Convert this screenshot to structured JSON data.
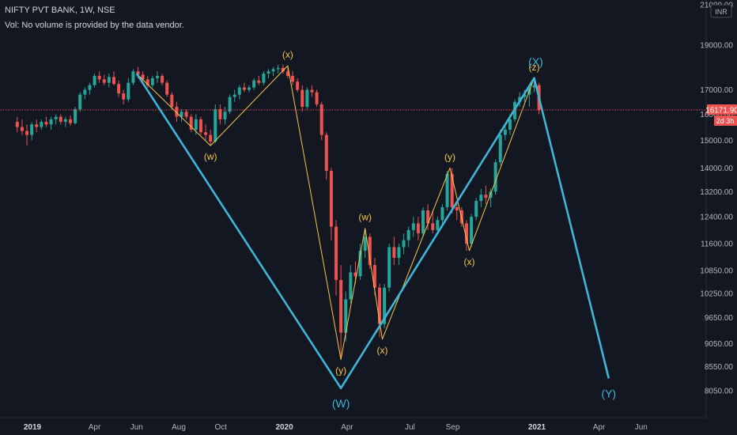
{
  "header": {
    "title": "NIFTY PVT BANK, 1W, NSE",
    "volume_note": "Vol: No volume is provided by the data vendor."
  },
  "price_axis": {
    "currency": "INR",
    "ticks": [
      "21000.00",
      "19000.00",
      "17000.00",
      "16000.00",
      "15000.00",
      "14000.00",
      "13200.00",
      "12400.00",
      "11600.00",
      "10850.00",
      "10250.00",
      "9650.00",
      "9050.00",
      "8550.00",
      "8050.00"
    ],
    "last_price": "16171.90",
    "countdown": "2d 3h"
  },
  "colors": {
    "background": "#131722",
    "up": "#26a69a",
    "down": "#ef5350",
    "primary_wave": "#3fb6d6",
    "minor_wave": "#f5c64b",
    "price_line": "#ef5350"
  },
  "chart_data": {
    "type": "candlestick",
    "symbol": "NIFTY PVT BANK",
    "interval": "1W",
    "exchange": "NSE",
    "x_labels": [
      "2019",
      "Apr",
      "Jun",
      "Aug",
      "Oct",
      "2020",
      "Apr",
      "Jul",
      "Sep",
      "2021",
      "Apr",
      "Jun"
    ],
    "y_scale": "log",
    "ylim": [
      8000,
      21500
    ],
    "last_price": 16171.9,
    "primary_wave": [
      {
        "date": "2019-06-01",
        "value": 17700
      },
      {
        "date": "2020-03-23",
        "value": 8100,
        "label": "(W)"
      },
      {
        "date": "2020-12-28",
        "value": 17500,
        "label": "(X)"
      },
      {
        "date": "2021-04-15",
        "value": 8300,
        "label": "(Y)"
      }
    ],
    "minor_wave": [
      {
        "date": "2019-06-01",
        "value": 17700
      },
      {
        "date": "2019-09-16",
        "value": 14800,
        "label": "(w)"
      },
      {
        "date": "2020-01-06",
        "value": 18050,
        "label": "(x)"
      },
      {
        "date": "2020-03-23",
        "value": 8700,
        "label": "(y)"
      },
      {
        "date": "2020-04-27",
        "value": 12050,
        "label": "(w)"
      },
      {
        "date": "2020-05-22",
        "value": 9150,
        "label": "(x)"
      },
      {
        "date": "2020-08-28",
        "value": 14000,
        "label": "(y)"
      },
      {
        "date": "2020-09-25",
        "value": 11400,
        "label": "(x)"
      },
      {
        "date": "2020-12-28",
        "value": 17500,
        "label": "(z)"
      }
    ],
    "candles": [
      {
        "d": "2018-12-10",
        "o": 15700,
        "h": 15900,
        "l": 15300,
        "c": 15500
      },
      {
        "d": "2018-12-17",
        "o": 15500,
        "h": 15800,
        "l": 15200,
        "c": 15350
      },
      {
        "d": "2018-12-24",
        "o": 15350,
        "h": 15600,
        "l": 14800,
        "c": 15200
      },
      {
        "d": "2018-12-31",
        "o": 15200,
        "h": 15700,
        "l": 15000,
        "c": 15600
      },
      {
        "d": "2019-01-07",
        "o": 15600,
        "h": 15800,
        "l": 15300,
        "c": 15500
      },
      {
        "d": "2019-01-14",
        "o": 15500,
        "h": 15800,
        "l": 15400,
        "c": 15700
      },
      {
        "d": "2019-01-21",
        "o": 15700,
        "h": 15900,
        "l": 15500,
        "c": 15600
      },
      {
        "d": "2019-01-28",
        "o": 15600,
        "h": 15900,
        "l": 15400,
        "c": 15800
      },
      {
        "d": "2019-02-04",
        "o": 15800,
        "h": 16000,
        "l": 15600,
        "c": 15900
      },
      {
        "d": "2019-02-11",
        "o": 15900,
        "h": 16000,
        "l": 15600,
        "c": 15700
      },
      {
        "d": "2019-02-18",
        "o": 15700,
        "h": 15900,
        "l": 15500,
        "c": 15800
      },
      {
        "d": "2019-02-25",
        "o": 15800,
        "h": 15950,
        "l": 15550,
        "c": 15650
      },
      {
        "d": "2019-03-04",
        "o": 15650,
        "h": 16300,
        "l": 15600,
        "c": 16200
      },
      {
        "d": "2019-03-11",
        "o": 16200,
        "h": 16900,
        "l": 16100,
        "c": 16800
      },
      {
        "d": "2019-03-18",
        "o": 16800,
        "h": 17100,
        "l": 16600,
        "c": 17000
      },
      {
        "d": "2019-03-25",
        "o": 17000,
        "h": 17300,
        "l": 16800,
        "c": 17200
      },
      {
        "d": "2019-04-01",
        "o": 17200,
        "h": 17700,
        "l": 17100,
        "c": 17600
      },
      {
        "d": "2019-04-08",
        "o": 17600,
        "h": 17800,
        "l": 17300,
        "c": 17450
      },
      {
        "d": "2019-04-15",
        "o": 17450,
        "h": 17650,
        "l": 17200,
        "c": 17300
      },
      {
        "d": "2019-04-22",
        "o": 17300,
        "h": 17700,
        "l": 17100,
        "c": 17550
      },
      {
        "d": "2019-04-29",
        "o": 17550,
        "h": 17800,
        "l": 17200,
        "c": 17250
      },
      {
        "d": "2019-05-06",
        "o": 17250,
        "h": 17400,
        "l": 16700,
        "c": 16850
      },
      {
        "d": "2019-05-13",
        "o": 16850,
        "h": 17000,
        "l": 16400,
        "c": 16600
      },
      {
        "d": "2019-05-20",
        "o": 16600,
        "h": 17500,
        "l": 16500,
        "c": 17300
      },
      {
        "d": "2019-05-27",
        "o": 17300,
        "h": 17900,
        "l": 17200,
        "c": 17800
      },
      {
        "d": "2019-06-03",
        "o": 17800,
        "h": 18000,
        "l": 17500,
        "c": 17650
      },
      {
        "d": "2019-06-10",
        "o": 17650,
        "h": 17800,
        "l": 17350,
        "c": 17450
      },
      {
        "d": "2019-06-17",
        "o": 17450,
        "h": 17600,
        "l": 17100,
        "c": 17200
      },
      {
        "d": "2019-06-24",
        "o": 17200,
        "h": 17600,
        "l": 17100,
        "c": 17500
      },
      {
        "d": "2019-07-01",
        "o": 17500,
        "h": 17800,
        "l": 17300,
        "c": 17600
      },
      {
        "d": "2019-07-08",
        "o": 17600,
        "h": 17700,
        "l": 17200,
        "c": 17300
      },
      {
        "d": "2019-07-15",
        "o": 17300,
        "h": 17400,
        "l": 16700,
        "c": 16800
      },
      {
        "d": "2019-07-22",
        "o": 16800,
        "h": 16900,
        "l": 16200,
        "c": 16300
      },
      {
        "d": "2019-07-29",
        "o": 16300,
        "h": 16500,
        "l": 15700,
        "c": 15900
      },
      {
        "d": "2019-08-05",
        "o": 15900,
        "h": 16200,
        "l": 15700,
        "c": 16100
      },
      {
        "d": "2019-08-12",
        "o": 16100,
        "h": 16200,
        "l": 15800,
        "c": 15900
      },
      {
        "d": "2019-08-19",
        "o": 15900,
        "h": 16000,
        "l": 15300,
        "c": 15400
      },
      {
        "d": "2019-08-26",
        "o": 15400,
        "h": 16000,
        "l": 15200,
        "c": 15800
      },
      {
        "d": "2019-09-02",
        "o": 15800,
        "h": 15900,
        "l": 15200,
        "c": 15300
      },
      {
        "d": "2019-09-09",
        "o": 15300,
        "h": 15600,
        "l": 15000,
        "c": 15200
      },
      {
        "d": "2019-09-16",
        "o": 15200,
        "h": 15400,
        "l": 14800,
        "c": 14950
      },
      {
        "d": "2019-09-23",
        "o": 14950,
        "h": 16400,
        "l": 14900,
        "c": 16200
      },
      {
        "d": "2019-09-30",
        "o": 16200,
        "h": 16400,
        "l": 15600,
        "c": 15800
      },
      {
        "d": "2019-10-07",
        "o": 15800,
        "h": 16300,
        "l": 15600,
        "c": 16100
      },
      {
        "d": "2019-10-14",
        "o": 16100,
        "h": 16800,
        "l": 16000,
        "c": 16700
      },
      {
        "d": "2019-10-21",
        "o": 16700,
        "h": 17000,
        "l": 16500,
        "c": 16800
      },
      {
        "d": "2019-10-28",
        "o": 16800,
        "h": 17200,
        "l": 16600,
        "c": 17100
      },
      {
        "d": "2019-11-04",
        "o": 17100,
        "h": 17300,
        "l": 16900,
        "c": 17000
      },
      {
        "d": "2019-11-11",
        "o": 17000,
        "h": 17200,
        "l": 16900,
        "c": 17100
      },
      {
        "d": "2019-11-18",
        "o": 17100,
        "h": 17500,
        "l": 17000,
        "c": 17400
      },
      {
        "d": "2019-11-25",
        "o": 17400,
        "h": 17600,
        "l": 17200,
        "c": 17300
      },
      {
        "d": "2019-12-02",
        "o": 17300,
        "h": 17800,
        "l": 17200,
        "c": 17700
      },
      {
        "d": "2019-12-09",
        "o": 17700,
        "h": 17900,
        "l": 17500,
        "c": 17800
      },
      {
        "d": "2019-12-16",
        "o": 17800,
        "h": 18000,
        "l": 17600,
        "c": 17900
      },
      {
        "d": "2019-12-23",
        "o": 17900,
        "h": 18100,
        "l": 17700,
        "c": 17950
      },
      {
        "d": "2019-12-30",
        "o": 17950,
        "h": 18100,
        "l": 17700,
        "c": 17800
      },
      {
        "d": "2020-01-06",
        "o": 17800,
        "h": 18050,
        "l": 17500,
        "c": 17600
      },
      {
        "d": "2020-01-13",
        "o": 17600,
        "h": 17800,
        "l": 17200,
        "c": 17350
      },
      {
        "d": "2020-01-20",
        "o": 17350,
        "h": 17500,
        "l": 16900,
        "c": 17000
      },
      {
        "d": "2020-01-27",
        "o": 17000,
        "h": 17200,
        "l": 16100,
        "c": 16300
      },
      {
        "d": "2020-02-03",
        "o": 16300,
        "h": 17100,
        "l": 16200,
        "c": 17000
      },
      {
        "d": "2020-02-10",
        "o": 17000,
        "h": 17200,
        "l": 16700,
        "c": 16900
      },
      {
        "d": "2020-02-17",
        "o": 16900,
        "h": 17000,
        "l": 16300,
        "c": 16400
      },
      {
        "d": "2020-02-24",
        "o": 16400,
        "h": 16500,
        "l": 15000,
        "c": 15200
      },
      {
        "d": "2020-03-02",
        "o": 15200,
        "h": 15300,
        "l": 13600,
        "c": 13900
      },
      {
        "d": "2020-03-09",
        "o": 13900,
        "h": 14000,
        "l": 11700,
        "c": 12100
      },
      {
        "d": "2020-03-16",
        "o": 12100,
        "h": 12300,
        "l": 10200,
        "c": 10600
      },
      {
        "d": "2020-03-23",
        "o": 10600,
        "h": 11000,
        "l": 8700,
        "c": 9300
      },
      {
        "d": "2020-03-30",
        "o": 9300,
        "h": 10300,
        "l": 9100,
        "c": 10100
      },
      {
        "d": "2020-04-06",
        "o": 10100,
        "h": 11000,
        "l": 10000,
        "c": 10800
      },
      {
        "d": "2020-04-13",
        "o": 10800,
        "h": 11100,
        "l": 10500,
        "c": 10700
      },
      {
        "d": "2020-04-20",
        "o": 10700,
        "h": 11600,
        "l": 10600,
        "c": 11400
      },
      {
        "d": "2020-04-27",
        "o": 11400,
        "h": 12050,
        "l": 11200,
        "c": 11800
      },
      {
        "d": "2020-05-04",
        "o": 11800,
        "h": 11900,
        "l": 10900,
        "c": 11000
      },
      {
        "d": "2020-05-11",
        "o": 11000,
        "h": 11200,
        "l": 10200,
        "c": 10400
      },
      {
        "d": "2020-05-18",
        "o": 10400,
        "h": 10500,
        "l": 9200,
        "c": 9500
      },
      {
        "d": "2020-05-25",
        "o": 9500,
        "h": 10500,
        "l": 9400,
        "c": 10400
      },
      {
        "d": "2020-06-01",
        "o": 10400,
        "h": 11600,
        "l": 10300,
        "c": 11500
      },
      {
        "d": "2020-06-08",
        "o": 11500,
        "h": 11800,
        "l": 11000,
        "c": 11200
      },
      {
        "d": "2020-06-15",
        "o": 11200,
        "h": 11600,
        "l": 11000,
        "c": 11500
      },
      {
        "d": "2020-06-22",
        "o": 11500,
        "h": 11900,
        "l": 11300,
        "c": 11700
      },
      {
        "d": "2020-06-29",
        "o": 11700,
        "h": 12100,
        "l": 11500,
        "c": 12000
      },
      {
        "d": "2020-07-06",
        "o": 12000,
        "h": 12400,
        "l": 11800,
        "c": 12200
      },
      {
        "d": "2020-07-13",
        "o": 12200,
        "h": 12400,
        "l": 11700,
        "c": 11900
      },
      {
        "d": "2020-07-20",
        "o": 11900,
        "h": 12700,
        "l": 11800,
        "c": 12600
      },
      {
        "d": "2020-07-27",
        "o": 12600,
        "h": 12800,
        "l": 12000,
        "c": 12200
      },
      {
        "d": "2020-08-03",
        "o": 12200,
        "h": 12600,
        "l": 11900,
        "c": 12000
      },
      {
        "d": "2020-08-10",
        "o": 12000,
        "h": 12400,
        "l": 11900,
        "c": 12300
      },
      {
        "d": "2020-08-17",
        "o": 12300,
        "h": 12800,
        "l": 12100,
        "c": 12700
      },
      {
        "d": "2020-08-24",
        "o": 12700,
        "h": 13900,
        "l": 12600,
        "c": 13800
      },
      {
        "d": "2020-08-31",
        "o": 13800,
        "h": 14000,
        "l": 12500,
        "c": 12700
      },
      {
        "d": "2020-09-07",
        "o": 12700,
        "h": 12900,
        "l": 12300,
        "c": 12600
      },
      {
        "d": "2020-09-14",
        "o": 12600,
        "h": 12700,
        "l": 12100,
        "c": 12200
      },
      {
        "d": "2020-09-21",
        "o": 12200,
        "h": 12300,
        "l": 11400,
        "c": 11600
      },
      {
        "d": "2020-09-28",
        "o": 11600,
        "h": 12500,
        "l": 11500,
        "c": 12400
      },
      {
        "d": "2020-10-05",
        "o": 12400,
        "h": 13000,
        "l": 12300,
        "c": 12900
      },
      {
        "d": "2020-10-12",
        "o": 12900,
        "h": 13300,
        "l": 12700,
        "c": 13100
      },
      {
        "d": "2020-10-19",
        "o": 13100,
        "h": 13400,
        "l": 12800,
        "c": 13000
      },
      {
        "d": "2020-10-26",
        "o": 13000,
        "h": 13300,
        "l": 12700,
        "c": 13200
      },
      {
        "d": "2020-11-02",
        "o": 13200,
        "h": 14300,
        "l": 13100,
        "c": 14200
      },
      {
        "d": "2020-11-09",
        "o": 14200,
        "h": 15400,
        "l": 14100,
        "c": 15200
      },
      {
        "d": "2020-11-16",
        "o": 15200,
        "h": 15600,
        "l": 15000,
        "c": 15400
      },
      {
        "d": "2020-11-23",
        "o": 15400,
        "h": 16000,
        "l": 15200,
        "c": 15800
      },
      {
        "d": "2020-11-30",
        "o": 15800,
        "h": 16600,
        "l": 15700,
        "c": 16500
      },
      {
        "d": "2020-12-07",
        "o": 16500,
        "h": 16900,
        "l": 16300,
        "c": 16700
      },
      {
        "d": "2020-12-14",
        "o": 16700,
        "h": 17000,
        "l": 16500,
        "c": 16800
      },
      {
        "d": "2020-12-21",
        "o": 16800,
        "h": 17200,
        "l": 16300,
        "c": 17100
      },
      {
        "d": "2020-12-28",
        "o": 17100,
        "h": 17500,
        "l": 16900,
        "c": 17200
      },
      {
        "d": "2021-01-04",
        "o": 17200,
        "h": 17300,
        "l": 16000,
        "c": 16171.9
      }
    ]
  }
}
